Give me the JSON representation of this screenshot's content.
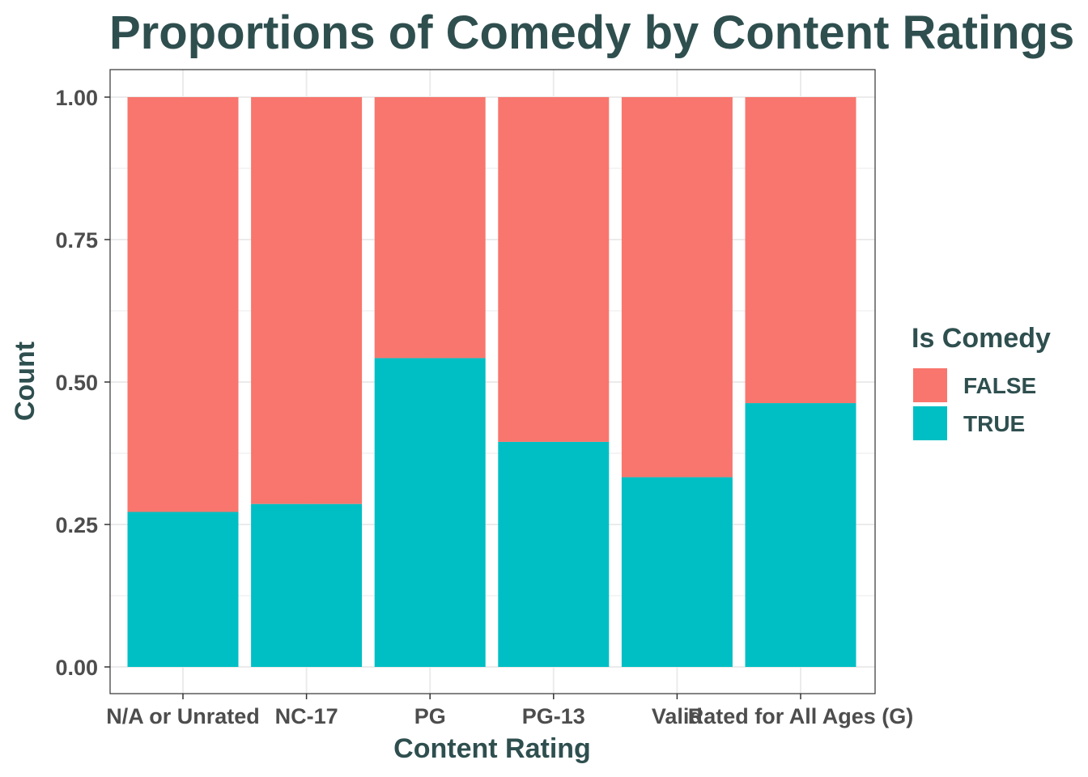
{
  "chart_data": {
    "type": "bar",
    "stacked": true,
    "title": "Proportions of Comedy by Content Ratings",
    "xlabel": "Content Rating",
    "ylabel": "Count",
    "ylim": [
      0,
      1
    ],
    "yticks": [
      "0.00",
      "0.25",
      "0.50",
      "0.75",
      "1.00"
    ],
    "categories": [
      "N/A or Unrated",
      "NC-17",
      "PG",
      "PG-13",
      "Valid",
      "Rated for All Ages (G)"
    ],
    "series": [
      {
        "name": "FALSE",
        "color": "#f8766d",
        "values": [
          0.728,
          0.714,
          0.458,
          0.605,
          0.667,
          0.537
        ]
      },
      {
        "name": "TRUE",
        "color": "#00bfc4",
        "values": [
          0.272,
          0.286,
          0.542,
          0.395,
          0.333,
          0.463
        ]
      }
    ],
    "legend": {
      "title": "Is Comedy",
      "position": "right"
    },
    "grid": true
  }
}
